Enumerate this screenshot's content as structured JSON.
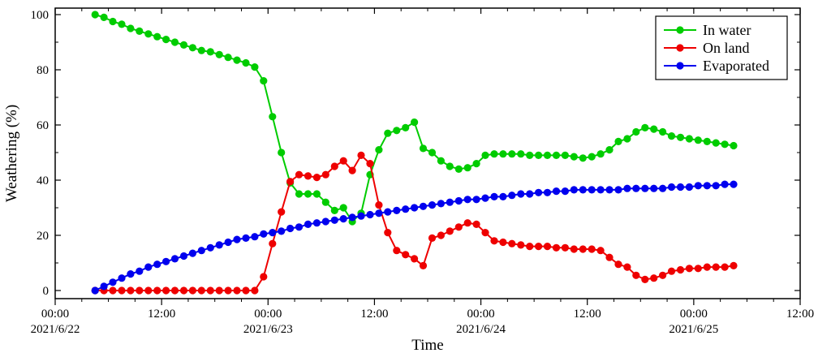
{
  "chart_data": {
    "type": "line",
    "xlabel": "Time",
    "ylabel": "Weathering (%)",
    "ylim": [
      0,
      100
    ],
    "y_ticks": [
      0,
      20,
      40,
      60,
      80,
      100
    ],
    "y_tick_labels": [
      "0",
      "20",
      "40",
      "60",
      "80",
      "100"
    ],
    "xlim_hours": [
      0,
      84
    ],
    "x_ticks_hours": [
      0,
      12,
      24,
      36,
      48,
      60,
      72,
      84
    ],
    "x_tick_labels": [
      [
        "00:00",
        "2021/6/22"
      ],
      [
        "12:00",
        ""
      ],
      [
        "00:00",
        "2021/6/23"
      ],
      [
        "12:00",
        ""
      ],
      [
        "00:00",
        "2021/6/24"
      ],
      [
        "12:00",
        ""
      ],
      [
        "00:00",
        "2021/6/25"
      ],
      [
        "12:00",
        ""
      ]
    ],
    "grid": false,
    "legend_position": "top-right",
    "x": [
      4.5,
      5.5,
      6.5,
      7.5,
      8.5,
      9.5,
      10.5,
      11.5,
      12.5,
      13.5,
      14.5,
      15.5,
      16.5,
      17.5,
      18.5,
      19.5,
      20.5,
      21.5,
      22.5,
      23.5,
      24.5,
      25.5,
      26.5,
      27.5,
      28.5,
      29.5,
      30.5,
      31.5,
      32.5,
      33.5,
      34.5,
      35.5,
      36.5,
      37.5,
      38.5,
      39.5,
      40.5,
      41.5,
      42.5,
      43.5,
      44.5,
      45.5,
      46.5,
      47.5,
      48.5,
      49.5,
      50.5,
      51.5,
      52.5,
      53.5,
      54.5,
      55.5,
      56.5,
      57.5,
      58.5,
      59.5,
      60.5,
      61.5,
      62.5,
      63.5,
      64.5,
      65.5,
      66.5,
      67.5,
      68.5,
      69.5,
      70.5,
      71.5,
      72.5,
      73.5,
      74.5,
      75.5,
      76.5
    ],
    "series": [
      {
        "name": "In water",
        "color": "#00cc00",
        "values": [
          100,
          99,
          97.5,
          96.5,
          95,
          94,
          93,
          92,
          91,
          90,
          89,
          88,
          87,
          86.5,
          85.5,
          84.5,
          83.5,
          82.5,
          81,
          76,
          63,
          50,
          39,
          35,
          35,
          35,
          32,
          29,
          30,
          25,
          28,
          42,
          51,
          57,
          58,
          59,
          61,
          51.5,
          50,
          47,
          45,
          44,
          44.5,
          46,
          49,
          49.5,
          49.5,
          49.5,
          49.5,
          49,
          49,
          49,
          49,
          49,
          48.5,
          48,
          48.5,
          49.5,
          51,
          54,
          55,
          57.5,
          59,
          58.5,
          57.5,
          56,
          55.5,
          55,
          54.5,
          54,
          53.5,
          53,
          52.5
        ]
      },
      {
        "name": "On land",
        "color": "#ee0000",
        "values": [
          0,
          0,
          0,
          0,
          0,
          0,
          0,
          0,
          0,
          0,
          0,
          0,
          0,
          0,
          0,
          0,
          0,
          0,
          0,
          5,
          17,
          28.5,
          39.5,
          42,
          41.5,
          41,
          42,
          45,
          47,
          43.5,
          49,
          46,
          31,
          21,
          14.5,
          13,
          11.5,
          9,
          19,
          20,
          21.5,
          23,
          24.5,
          24,
          21,
          18,
          17.5,
          17,
          16.5,
          16,
          16,
          16,
          15.5,
          15.5,
          15,
          15,
          15,
          14.5,
          12,
          9.5,
          8.5,
          5.5,
          4,
          4.5,
          5.5,
          7,
          7.5,
          8,
          8,
          8.5,
          8.5,
          8.5,
          9
        ]
      },
      {
        "name": "Evaporated",
        "color": "#0000ee",
        "values": [
          0,
          1.5,
          3,
          4.5,
          6,
          7,
          8.5,
          9.5,
          10.5,
          11.5,
          12.5,
          13.5,
          14.5,
          15.5,
          16.5,
          17.5,
          18.5,
          19,
          19.5,
          20.5,
          21,
          21.5,
          22.5,
          23,
          24,
          24.5,
          25,
          25.5,
          26,
          26.5,
          27,
          27.5,
          28,
          28.5,
          29,
          29.5,
          30,
          30.5,
          31,
          31.5,
          32,
          32.5,
          33,
          33,
          33.5,
          34,
          34,
          34.5,
          35,
          35,
          35.5,
          35.5,
          36,
          36,
          36.5,
          36.5,
          36.5,
          36.5,
          36.5,
          36.5,
          37,
          37,
          37,
          37,
          37,
          37.5,
          37.5,
          37.5,
          38,
          38,
          38,
          38.5,
          38.5
        ]
      }
    ]
  }
}
